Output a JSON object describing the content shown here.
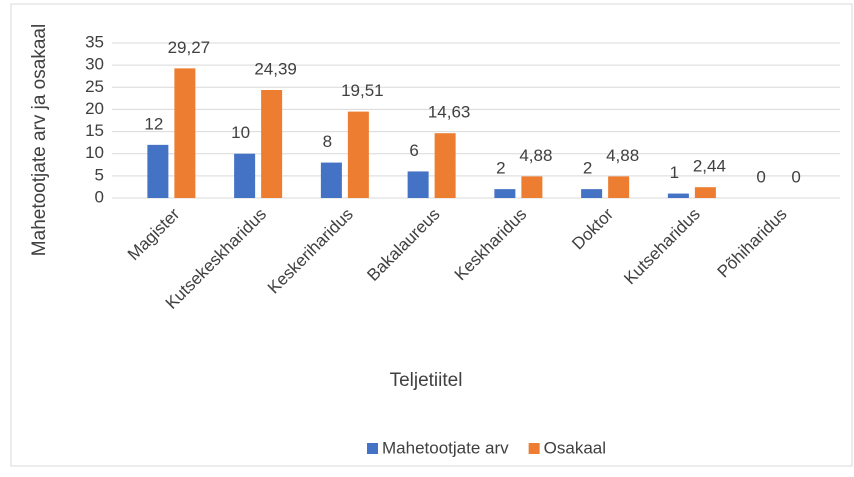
{
  "chart_data": {
    "type": "bar",
    "x_label": "Teljetiitel",
    "y_label": "Mahetootjate arv ja osakaal",
    "categories": [
      "Magister",
      "Kutsekeskharidus",
      "Keskeriharidus",
      "Bakalaureus",
      "Keskharidus",
      "Doktor",
      "Kutseharidus",
      "Põhiharidus"
    ],
    "series": [
      {
        "name": "Mahetootjate arv",
        "color": "#4472c4",
        "values": [
          12,
          10,
          8,
          6,
          2,
          2,
          1,
          0
        ]
      },
      {
        "name": "Osakaal",
        "color": "#ed7d31",
        "values": [
          29.27,
          24.39,
          19.51,
          14.63,
          4.88,
          4.88,
          2.44,
          0
        ],
        "value_labels": [
          "29,27",
          "24,39",
          "19,51",
          "14,63",
          "4,88",
          "4,88",
          "2,44",
          "0"
        ]
      }
    ],
    "ylim": [
      0,
      35
    ],
    "yticks": [
      0,
      5,
      10,
      15,
      20,
      25,
      30,
      35
    ],
    "grid": true,
    "legend": "bottom"
  }
}
